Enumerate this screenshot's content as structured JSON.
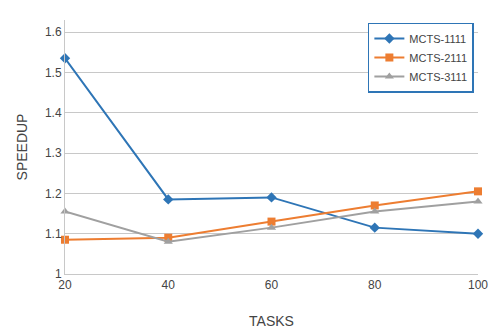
{
  "chart_data": {
    "type": "line",
    "x": [
      20,
      40,
      60,
      80,
      100
    ],
    "series": [
      {
        "name": "MCTS-1111",
        "values": [
          1.535,
          1.185,
          1.19,
          1.115,
          1.1
        ],
        "color": "#2e75b6",
        "marker": "diamond"
      },
      {
        "name": "MCTS-2111",
        "values": [
          1.085,
          1.09,
          1.13,
          1.17,
          1.205
        ],
        "color": "#ed7d31",
        "marker": "square"
      },
      {
        "name": "MCTS-3111",
        "values": [
          1.155,
          1.08,
          1.115,
          1.155,
          1.18
        ],
        "color": "#a0a0a0",
        "marker": "triangle-up"
      }
    ],
    "xlabel": "TASKS",
    "ylabel": "SPEEDUP",
    "xlim": [
      20,
      100
    ],
    "xticks": [
      20,
      40,
      60,
      80,
      100
    ],
    "ylim": [
      1.0,
      1.63
    ],
    "yticks": [
      1,
      1.1,
      1.2,
      1.3,
      1.4,
      1.5,
      1.6
    ],
    "grid": true,
    "legend": "upper right"
  }
}
